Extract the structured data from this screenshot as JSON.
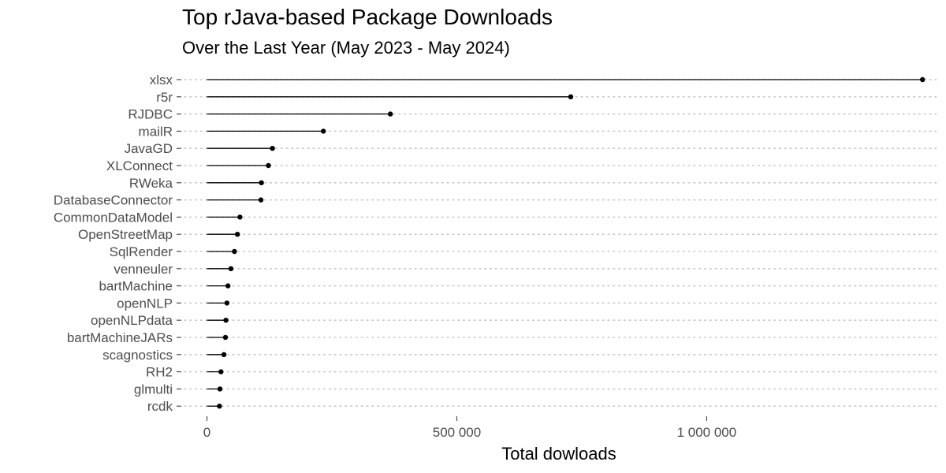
{
  "chart_data": {
    "type": "lollipop",
    "title": "Top rJava-based Package Downloads",
    "subtitle": "Over the Last Year (May 2023 - May 2024)",
    "xlabel": "Total dowloads",
    "ylabel": "",
    "xlim": [
      -45000,
      1460000
    ],
    "xticks": [
      0,
      500000,
      1000000
    ],
    "xtick_labels": [
      "0",
      "500 000",
      "1 000 000"
    ],
    "grid": "horizontal dotted",
    "categories": [
      "xlsx",
      "r5r",
      "RJDBC",
      "mailR",
      "JavaGD",
      "XLConnect",
      "RWeka",
      "DatabaseConnector",
      "CommonDataModel",
      "OpenStreetMap",
      "SqlRender",
      "venneuler",
      "bartMachine",
      "openNLP",
      "openNLPdata",
      "bartMachineJARs",
      "scagnostics",
      "RH2",
      "glmulti",
      "rcdk"
    ],
    "values": [
      1432000,
      728000,
      367000,
      233000,
      131000,
      123000,
      109000,
      108000,
      66000,
      61000,
      55000,
      48000,
      42000,
      40000,
      38000,
      37000,
      34000,
      28000,
      26000,
      25000
    ]
  }
}
